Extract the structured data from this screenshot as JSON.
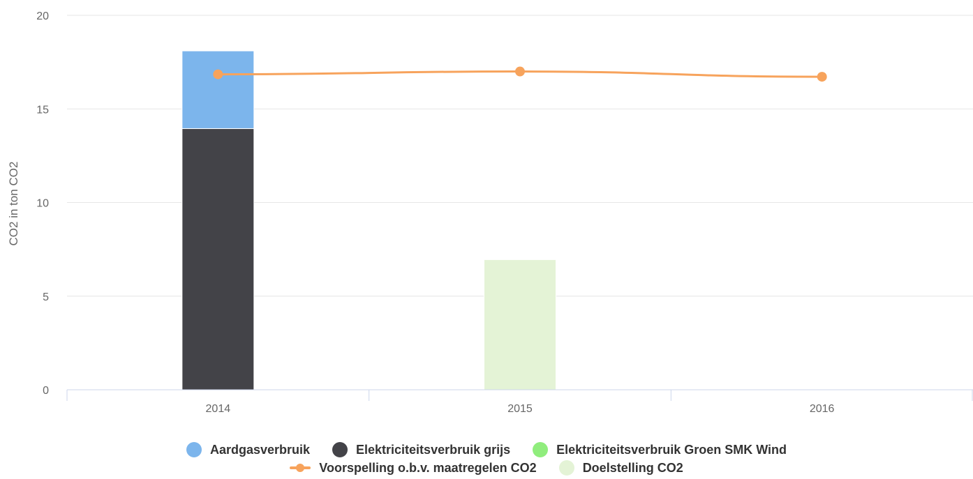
{
  "chart_data": {
    "type": "bar",
    "categories": [
      "2014",
      "2015",
      "2016"
    ],
    "ylabel": "CO2 in ton CO2",
    "xlabel": "",
    "ylim": [
      0,
      20
    ],
    "yticks": [
      "0",
      "5",
      "10",
      "15",
      "20"
    ],
    "stacked": true,
    "grid": true,
    "legend_position": "bottom",
    "series": [
      {
        "name": "Aardgasverbruik",
        "type": "bar",
        "color": "#7cb5ec",
        "values": [
          4.15,
          0,
          0
        ]
      },
      {
        "name": "Elektriciteitsverbruik grijs",
        "type": "bar",
        "color": "#434348",
        "values": [
          13.95,
          0,
          0
        ]
      },
      {
        "name": "Elektriciteitsverbruik Groen SMK Wind",
        "type": "bar",
        "color": "#90ed7d",
        "values": [
          0,
          0,
          0
        ]
      },
      {
        "name": "Voorspelling o.b.v. maatregelen CO2",
        "type": "line",
        "color": "#f7a35c",
        "values": [
          16.85,
          17.0,
          16.72
        ]
      },
      {
        "name": "Doelstelling CO2",
        "type": "bar",
        "color": "#e4f3d6",
        "values": [
          0,
          6.95,
          0
        ]
      }
    ]
  }
}
